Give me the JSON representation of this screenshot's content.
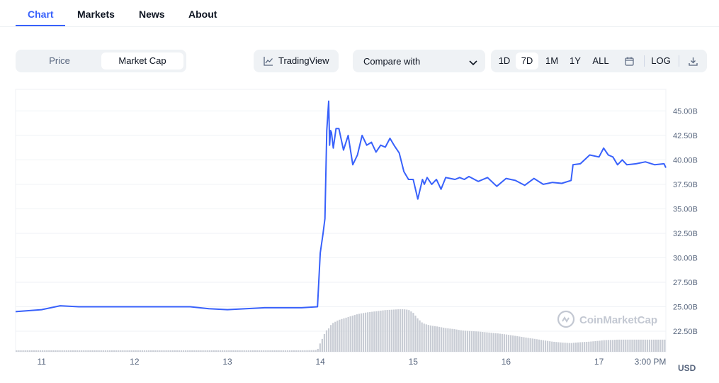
{
  "tabs": [
    {
      "label": "Chart",
      "active": true
    },
    {
      "label": "Markets",
      "active": false
    },
    {
      "label": "News",
      "active": false
    },
    {
      "label": "About",
      "active": false
    }
  ],
  "toggle": {
    "price": "Price",
    "market_cap": "Market Cap",
    "active": "Market Cap"
  },
  "tradingview_label": "TradingView",
  "compare_label": "Compare with",
  "ranges": [
    "1D",
    "7D",
    "1M",
    "1Y",
    "ALL"
  ],
  "active_range": "7D",
  "log_label": "LOG",
  "icons": {
    "tradingview": "line-chart-icon",
    "compare": "chevron-down-icon",
    "calendar": "calendar-icon",
    "download": "download-icon",
    "watermark": "coinmarketcap-logo-icon"
  },
  "colors": {
    "line": "#3861fb",
    "accent": "#3861fb",
    "volume": "#c8ccd4"
  },
  "watermark": "CoinMarketCap",
  "chart_data": {
    "type": "line",
    "x": [
      10.72,
      11.0,
      11.2,
      11.4,
      11.8,
      12.2,
      12.6,
      12.8,
      13.0,
      13.2,
      13.4,
      13.6,
      13.8,
      13.97,
      14.0,
      14.03,
      14.05,
      14.07,
      14.09,
      14.1,
      14.11,
      14.12,
      14.14,
      14.17,
      14.2,
      14.25,
      14.3,
      14.35,
      14.4,
      14.45,
      14.5,
      14.55,
      14.6,
      14.65,
      14.7,
      14.75,
      14.8,
      14.85,
      14.9,
      14.95,
      15.0,
      15.05,
      15.1,
      15.12,
      15.15,
      15.2,
      15.25,
      15.3,
      15.35,
      15.4,
      15.45,
      15.5,
      15.55,
      15.6,
      15.7,
      15.8,
      15.9,
      16.0,
      16.1,
      16.2,
      16.3,
      16.4,
      16.5,
      16.6,
      16.7,
      16.72,
      16.8,
      16.9,
      17.0,
      17.05,
      17.1,
      17.15,
      17.2,
      17.25,
      17.3,
      17.4,
      17.5,
      17.6,
      17.7,
      17.72
    ],
    "series": [
      {
        "values": [
          24.5,
          24.7,
          25.1,
          25.0,
          25.0,
          25.0,
          25.0,
          24.8,
          24.7,
          24.8,
          24.9,
          24.9,
          24.9,
          25.0,
          30.5,
          32.5,
          34.0,
          43.0,
          46.0,
          41.5,
          43.0,
          42.8,
          41.2,
          43.2,
          43.2,
          41.0,
          42.5,
          39.5,
          40.5,
          42.5,
          41.5,
          41.8,
          40.8,
          41.5,
          41.3,
          42.2,
          41.4,
          40.7,
          38.8,
          38.0,
          38.0,
          36.0,
          38.0,
          37.5,
          38.2,
          37.5,
          38.0,
          37.0,
          38.2,
          38.1,
          38.0,
          38.2,
          38.0,
          38.3,
          37.8,
          38.2,
          37.3,
          38.1,
          37.9,
          37.4,
          38.1,
          37.5,
          37.7,
          37.6,
          37.9,
          39.5,
          39.6,
          40.5,
          40.3,
          41.2,
          40.5,
          40.3,
          39.5,
          40.0,
          39.5,
          39.6,
          39.8,
          39.5,
          39.6,
          39.2
        ]
      }
    ],
    "volume": [
      0.5,
      0.5,
      0.5,
      0.5,
      0.5,
      0.5,
      0.5,
      0.5,
      0.5,
      0.5,
      0.5,
      0.5,
      0.5,
      0.6,
      3.0,
      5.0,
      6.5,
      7.5,
      8.0,
      8.5,
      9.0,
      9.5,
      10.0,
      10.5,
      11.0,
      11.5,
      12.0,
      12.5,
      13.0,
      13.3,
      13.6,
      13.8,
      14.0,
      14.2,
      14.4,
      14.5,
      14.6,
      14.7,
      14.7,
      14.5,
      13.5,
      11.5,
      10.0,
      9.7,
      9.4,
      9.0,
      8.8,
      8.5,
      8.2,
      8.0,
      7.8,
      7.5,
      7.3,
      7.2,
      7.0,
      6.7,
      6.4,
      6.0,
      5.5,
      5.0,
      4.5,
      4.0,
      3.5,
      3.2,
      3.0,
      3.1,
      3.3,
      3.5,
      3.8,
      4.0,
      4.1,
      4.1,
      4.2,
      4.2,
      4.2,
      4.2,
      4.2,
      4.2,
      4.2,
      4.2
    ],
    "x_ticks": [
      11,
      12,
      13,
      14,
      15,
      16,
      17
    ],
    "x_tick_labels": [
      "11",
      "12",
      "13",
      "14",
      "15",
      "16",
      "17"
    ],
    "x_end_label": "3:00 PM",
    "y_ticks": [
      22.5,
      25,
      27.5,
      30,
      32.5,
      35,
      37.5,
      40,
      42.5,
      45
    ],
    "y_tick_labels": [
      "22.50B",
      "25.00B",
      "27.50B",
      "30.00B",
      "32.50B",
      "35.00B",
      "37.50B",
      "40.00B",
      "42.50B",
      "45.00B"
    ],
    "ylabel": "USD",
    "ylim": [
      20.4,
      47.2
    ],
    "xlim": [
      10.72,
      17.72
    ],
    "grid": true
  }
}
